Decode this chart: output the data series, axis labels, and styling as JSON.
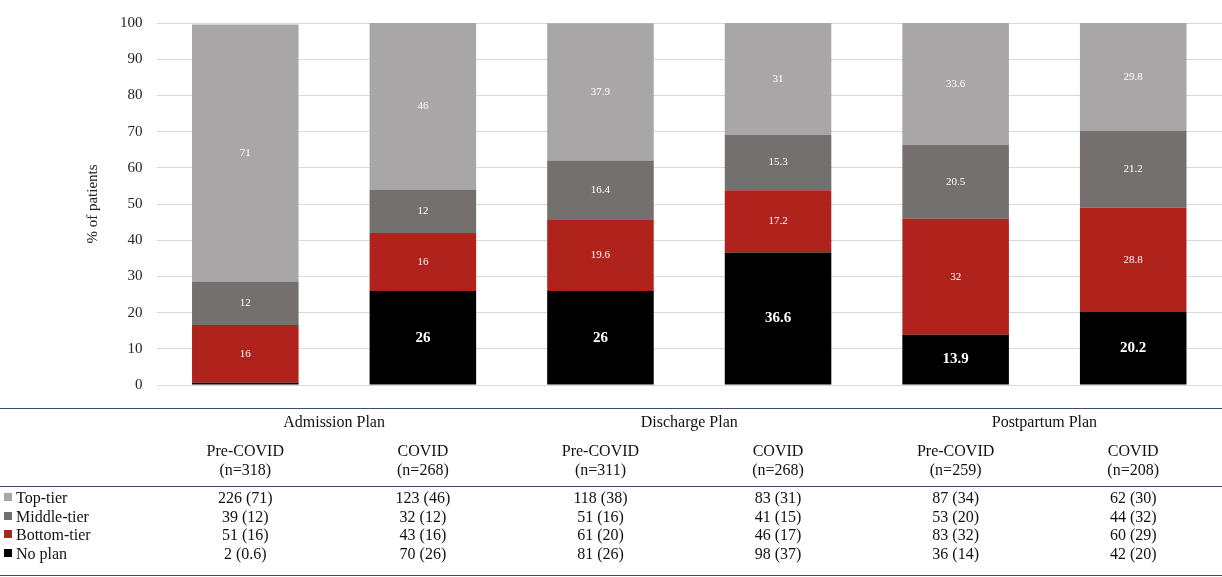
{
  "chart_data": {
    "type": "bar",
    "legend": "bottom left",
    "ylabel": "% of patients",
    "stacked": true,
    "grid": "y",
    "ylim": [
      0,
      100
    ],
    "yticks": [
      0,
      10,
      20,
      30,
      40,
      50,
      60,
      70,
      80,
      90,
      100
    ],
    "categories": [
      "Pre-COVID (n=318)",
      "COVID (n=268)",
      "Pre-COVID (n=311)",
      "COVID (n=268)",
      "Pre-COVID (n=259)",
      "COVID (n=208)"
    ],
    "series": [
      {
        "name": "No plan",
        "color": "#000000",
        "values": [
          0.6,
          26,
          26,
          36.6,
          13.9,
          20.2
        ],
        "value_labels": [
          null,
          "26",
          "26",
          "36.6",
          "13.9",
          "20.2"
        ]
      },
      {
        "name": "Bottom-tier",
        "color": "#b0231c",
        "values": [
          16,
          16,
          19.6,
          17.2,
          32,
          28.8
        ],
        "value_labels": [
          "16",
          "16",
          "19.6",
          "17.2",
          "32",
          "28.8"
        ]
      },
      {
        "name": "Middle-tier",
        "color": "#747070",
        "values": [
          12,
          12,
          16.4,
          15.3,
          20.5,
          21.2
        ],
        "value_labels": [
          "12",
          "12",
          "16.4",
          "15.3",
          "20.5",
          "21.2"
        ]
      },
      {
        "name": "Top-tier",
        "color": "#a9a6a8",
        "values": [
          71,
          46,
          37.9,
          31,
          33.6,
          29.8
        ],
        "value_labels": [
          "71",
          "46",
          "37.9",
          "31",
          "33.6",
          "29.8"
        ]
      }
    ],
    "annotations": [
      "Admission Plan",
      "Discharge Plan",
      "Postpartum Plan",
      "226 (71)",
      "123 (46)",
      "118 (38)",
      "83 (31)",
      "87 (34)",
      "62 (30)",
      "39 (12)",
      "32 (12)",
      "51 (16)",
      "41 (15)",
      "53 (20)",
      "44 (32)",
      "51 (16)",
      "43 (16)",
      "61 (20)",
      "46 (17)",
      "83 (32)",
      "60 (29)",
      "2 (0.6)",
      "70 (26)",
      "81 (26)",
      "98 (37)",
      "36 (14)",
      "42 (20)"
    ]
  }
}
